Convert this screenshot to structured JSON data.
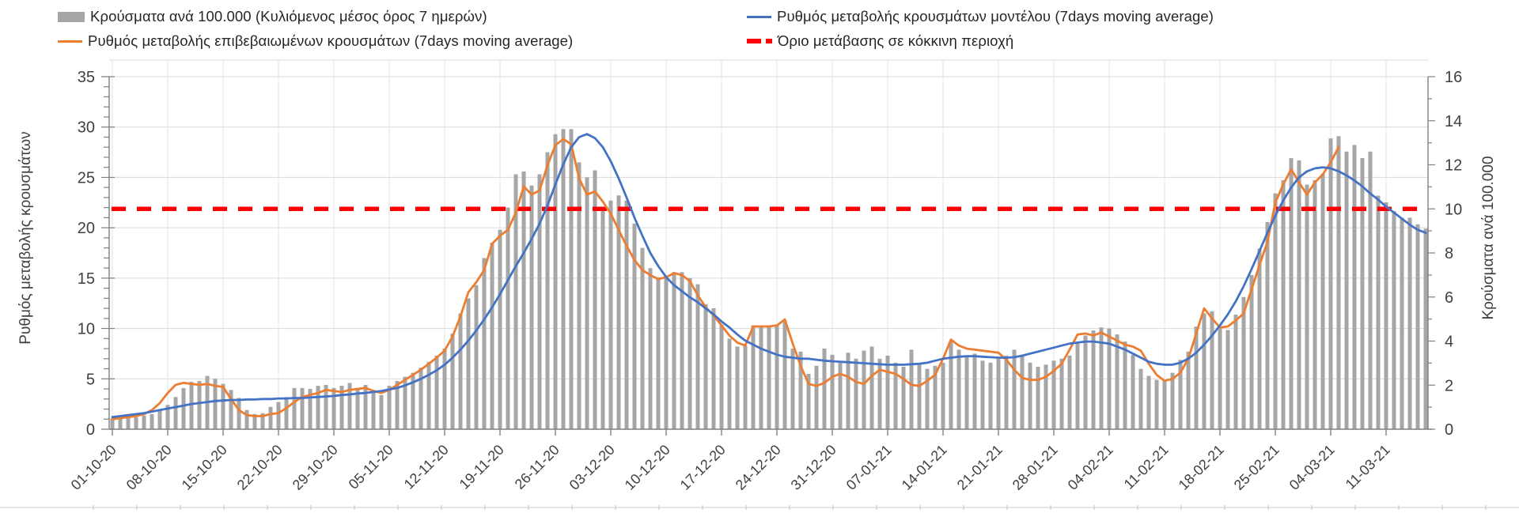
{
  "legend": {
    "items": [
      {
        "name": "cases-per-100k",
        "label": "Κρούσματα ανά 100.000 (Κυλιόμενος μέσος όρος 7 ημερών)",
        "swatch": "bar",
        "color": "#A6A6A6"
      },
      {
        "name": "model-rate",
        "label": "Ρυθμός μεταβολής κρουσμάτων μοντέλου (7days moving average)",
        "swatch": "line",
        "color": "#4472C4"
      },
      {
        "name": "confirmed-rate",
        "label": "Ρυθμός μεταβολής επιβεβαιωμένων κρουσμάτων (7days moving average)",
        "swatch": "line",
        "color": "#ED7D31"
      },
      {
        "name": "red-threshold",
        "label": "Όριο μετάβασης σε κόκκινη περιοχή",
        "swatch": "dash",
        "color": "#FF0000"
      }
    ]
  },
  "chart_data": {
    "type": "bar",
    "subtype": "combo-bar-line-daily",
    "title": "",
    "xlabel": "",
    "left_axis": {
      "title": "Ρυθμός μεταβολής κρουσμάτων",
      "min": 0,
      "max": 35,
      "step": 5,
      "tick_labels": [
        "0",
        "5",
        "10",
        "15",
        "20",
        "25",
        "30",
        "35"
      ]
    },
    "right_axis": {
      "title": "Κρούσματα ανά 100.000",
      "min": 0,
      "max": 16,
      "step": 2,
      "tick_labels": [
        "0",
        "2",
        "4",
        "6",
        "8",
        "10",
        "12",
        "14",
        "16"
      ]
    },
    "x_start_date": "01-10-20",
    "x_days": 167,
    "x_tick_every_days": 7,
    "x_tick_labels": [
      "01-10-20",
      "08-10-20",
      "15-10-20",
      "22-10-20",
      "29-10-20",
      "05-11-20",
      "12-11-20",
      "19-11-20",
      "26-11-20",
      "03-12-20",
      "10-12-20",
      "17-12-20",
      "24-12-20",
      "31-12-20",
      "07-01-21",
      "14-01-21",
      "21-01-21",
      "28-01-21",
      "04-02-21",
      "11-02-21",
      "18-02-21",
      "25-02-21",
      "04-03-21",
      "11-03-21"
    ],
    "threshold": {
      "axis": "right",
      "value": 10,
      "label": "Όριο μετάβασης σε κόκκινη περιοχή"
    },
    "grid": true,
    "legend_position": "top",
    "series": [
      {
        "name": "Κρούσματα ανά 100.000 (Κυλιόμενος μέσος όρος 7 ημερών)",
        "type": "bar",
        "axis": "right",
        "values": [
          0.5,
          0.55,
          0.57,
          0.55,
          0.62,
          0.69,
          0.91,
          1.1,
          1.46,
          1.87,
          2.15,
          2.19,
          2.42,
          2.29,
          2.06,
          1.78,
          1.42,
          0.87,
          0.69,
          0.73,
          1.01,
          1.23,
          1.46,
          1.87,
          1.87,
          1.83,
          1.97,
          2.01,
          1.87,
          1.97,
          2.1,
          1.87,
          2.01,
          1.65,
          1.55,
          1.97,
          2.19,
          2.38,
          2.56,
          2.79,
          3.06,
          3.34,
          3.66,
          4.34,
          5.26,
          5.94,
          6.54,
          7.77,
          8.46,
          9.05,
          10.06,
          11.57,
          11.7,
          11.06,
          11.57,
          12.57,
          13.39,
          13.62,
          13.62,
          12.11,
          11.43,
          11.75,
          10.01,
          10.38,
          10.61,
          10.38,
          9.33,
          8.23,
          7.31,
          6.9,
          6.95,
          7.13,
          7.13,
          6.86,
          6.58,
          5.67,
          5.49,
          4.75,
          4.11,
          3.75,
          3.79,
          4.71,
          4.66,
          4.71,
          4.75,
          4.94,
          3.66,
          3.52,
          2.51,
          2.88,
          3.66,
          3.38,
          3.02,
          3.47,
          3.2,
          3.57,
          3.75,
          3.2,
          3.34,
          3.02,
          2.83,
          3.61,
          2.93,
          2.74,
          2.88,
          3.02,
          4.02,
          3.61,
          3.34,
          3.43,
          3.11,
          3.02,
          3.2,
          3.34,
          3.61,
          3.38,
          3.02,
          2.83,
          2.93,
          3.11,
          3.2,
          3.34,
          3.89,
          4.25,
          4.48,
          4.62,
          4.57,
          4.3,
          3.98,
          3.38,
          2.74,
          2.42,
          2.24,
          2.24,
          2.56,
          3.15,
          3.52,
          4.66,
          5.26,
          5.35,
          4.57,
          4.5,
          5.2,
          6.0,
          7.0,
          8.2,
          9.4,
          10.7,
          11.3,
          12.3,
          12.2,
          11.1,
          11.3,
          11.6,
          13.2,
          13.3,
          12.6,
          12.9,
          12.3,
          12.6,
          10.6,
          10.3,
          9.9,
          9.6,
          9.6,
          9.3,
          9.1
        ]
      },
      {
        "name": "Ρυθμός μεταβολής επιβεβαιωμένων κρουσμάτων (7days moving average)",
        "type": "line",
        "axis": "left",
        "values": [
          1.0,
          1.1,
          1.2,
          1.3,
          1.5,
          1.9,
          2.6,
          3.6,
          4.4,
          4.6,
          4.5,
          4.4,
          4.5,
          4.3,
          4.2,
          3.0,
          1.9,
          1.4,
          1.3,
          1.3,
          1.5,
          1.6,
          2.1,
          2.7,
          3.2,
          3.4,
          3.6,
          3.9,
          3.8,
          3.7,
          3.9,
          4.0,
          4.1,
          3.8,
          3.6,
          3.9,
          4.4,
          4.9,
          5.4,
          5.9,
          6.5,
          7.1,
          7.8,
          9.2,
          11.2,
          13.6,
          14.6,
          15.8,
          18.4,
          19.2,
          19.8,
          21.5,
          24.1,
          23.3,
          23.7,
          26.2,
          28.2,
          28.8,
          28.3,
          24.9,
          23.3,
          23.6,
          22.6,
          21.4,
          19.8,
          18.2,
          16.8,
          15.8,
          15.3,
          14.9,
          15.1,
          15.5,
          15.3,
          14.7,
          13.3,
          12.1,
          11.3,
          10.3,
          9.3,
          8.6,
          8.3,
          10.2,
          10.2,
          10.2,
          10.3,
          10.9,
          8.5,
          6.3,
          4.5,
          4.3,
          4.6,
          5.2,
          5.5,
          5.2,
          4.7,
          4.5,
          5.3,
          5.9,
          5.7,
          5.5,
          5.0,
          4.4,
          4.3,
          4.8,
          5.4,
          7.0,
          8.9,
          8.3,
          8.0,
          7.9,
          7.8,
          7.7,
          7.6,
          6.9,
          5.9,
          5.1,
          4.9,
          4.9,
          5.2,
          5.8,
          6.5,
          7.9,
          9.4,
          9.5,
          9.3,
          9.6,
          9.2,
          8.8,
          8.4,
          8.2,
          7.8,
          6.5,
          5.4,
          4.8,
          5.0,
          5.6,
          7.0,
          9.5,
          12.0,
          11.0,
          10.1,
          10.2,
          10.8,
          11.5,
          13.9,
          16.3,
          18.6,
          22.5,
          24.3,
          25.8,
          24.5,
          23.3,
          24.5,
          25.3,
          26.5,
          28.0,
          null,
          null,
          null,
          null,
          null,
          null,
          null,
          null,
          null,
          null,
          null
        ]
      },
      {
        "name": "Ρυθμός μεταβολής κρουσμάτων μοντέλου (7days moving average)",
        "type": "line",
        "axis": "left",
        "values": [
          1.2,
          1.3,
          1.4,
          1.5,
          1.6,
          1.75,
          1.9,
          2.05,
          2.2,
          2.35,
          2.5,
          2.6,
          2.7,
          2.8,
          2.85,
          2.9,
          2.9,
          2.95,
          2.95,
          3.0,
          3.0,
          3.05,
          3.05,
          3.1,
          3.1,
          3.15,
          3.2,
          3.25,
          3.3,
          3.4,
          3.45,
          3.55,
          3.6,
          3.7,
          3.8,
          3.95,
          4.1,
          4.35,
          4.65,
          5.0,
          5.4,
          5.85,
          6.4,
          7.1,
          7.9,
          8.8,
          9.8,
          10.9,
          12.1,
          13.4,
          14.8,
          16.2,
          17.5,
          18.9,
          20.4,
          22.2,
          24.3,
          26.3,
          28.0,
          29.0,
          29.3,
          28.9,
          28.0,
          26.6,
          24.9,
          23.0,
          21.0,
          19.2,
          17.5,
          16.2,
          15.1,
          14.3,
          13.7,
          13.1,
          12.6,
          12.0,
          11.4,
          10.7,
          10.1,
          9.4,
          8.8,
          8.4,
          8.0,
          7.7,
          7.4,
          7.2,
          7.1,
          7.0,
          7.0,
          6.9,
          6.8,
          6.75,
          6.7,
          6.65,
          6.6,
          6.55,
          6.5,
          6.45,
          6.4,
          6.4,
          6.4,
          6.45,
          6.5,
          6.6,
          6.8,
          7.0,
          7.1,
          7.2,
          7.25,
          7.25,
          7.2,
          7.15,
          7.1,
          7.1,
          7.15,
          7.3,
          7.5,
          7.7,
          7.9,
          8.1,
          8.3,
          8.5,
          8.6,
          8.7,
          8.7,
          8.6,
          8.5,
          8.2,
          7.9,
          7.5,
          7.1,
          6.7,
          6.5,
          6.4,
          6.4,
          6.6,
          7.0,
          7.6,
          8.4,
          9.3,
          10.3,
          11.4,
          12.7,
          14.2,
          15.9,
          17.7,
          19.5,
          21.2,
          22.7,
          24.0,
          25.0,
          25.6,
          25.9,
          26.0,
          25.9,
          25.6,
          25.2,
          24.7,
          24.1,
          23.4,
          22.8,
          22.1,
          21.5,
          20.9,
          20.3,
          19.8,
          19.5
        ]
      }
    ],
    "colors": {
      "bar": "#A6A6A6",
      "confirmed_line": "#ED7D31",
      "model_line": "#4472C4",
      "threshold": "#FF0000",
      "gridline": "#D9D9D9",
      "axis_line": "#7F7F7F",
      "tick_text": "#404040"
    }
  }
}
